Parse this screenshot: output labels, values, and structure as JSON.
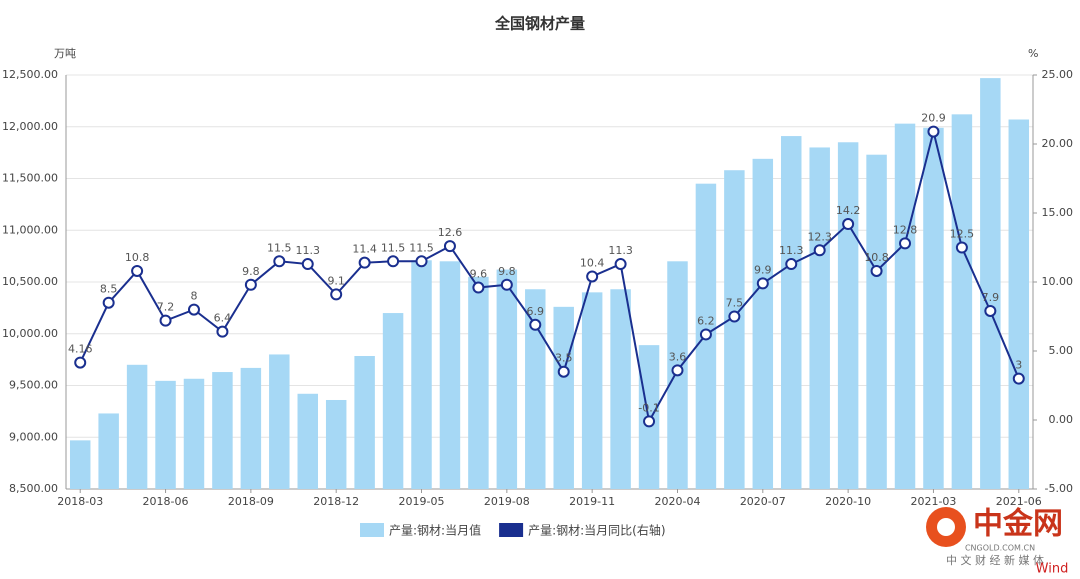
{
  "chart_data": {
    "type": "bar_line",
    "title": "全国钢材产量",
    "y_unit": "万吨",
    "y2_unit": "%",
    "categories": [
      "2018-03",
      null,
      null,
      "2018-06",
      null,
      null,
      "2018-09",
      null,
      null,
      "2018-12",
      null,
      null,
      "2019-05",
      null,
      null,
      "2019-08",
      null,
      null,
      "2019-11",
      null,
      null,
      "2020-04",
      null,
      null,
      "2020-07",
      null,
      null,
      "2020-10",
      null,
      null,
      "2021-03",
      null,
      null,
      "2021-06"
    ],
    "ylim": [
      8500,
      12500
    ],
    "yticks": [
      {
        "value": 8500,
        "label": "8,500.00"
      },
      {
        "value": 9000,
        "label": "9,000.00"
      },
      {
        "value": 9500,
        "label": "9,500.00"
      },
      {
        "value": 10000,
        "label": "10,000.00"
      },
      {
        "value": 10500,
        "label": "10,500.00"
      },
      {
        "value": 11000,
        "label": "11,000.00"
      },
      {
        "value": 11500,
        "label": "11,500.00"
      },
      {
        "value": 12000,
        "label": "12,000.00"
      },
      {
        "value": 12500,
        "label": "12,500.00"
      }
    ],
    "y2lim": [
      -5,
      25
    ],
    "y2ticks": [
      {
        "value": -5,
        "label": "-5.00"
      },
      {
        "value": 0,
        "label": "0.00"
      },
      {
        "value": 5,
        "label": "5.00"
      },
      {
        "value": 10,
        "label": "10.00"
      },
      {
        "value": 15,
        "label": "15.00"
      },
      {
        "value": 20,
        "label": "20.00"
      },
      {
        "value": 25,
        "label": "25.00"
      }
    ],
    "grid": true,
    "series": [
      {
        "name": "产量:钢材:当月值",
        "type": "bar",
        "color": "#a6d8f5",
        "values": [
          8970,
          9230,
          9700,
          9545,
          9565,
          9630,
          9670,
          9800,
          9420,
          9360,
          9785,
          10200,
          10710,
          10700,
          10550,
          10620,
          10430,
          10260,
          10400,
          10430,
          9890,
          10700,
          11450,
          11580,
          11690,
          11910,
          11800,
          11850,
          11730,
          12030,
          11990,
          12120,
          12470,
          12070
        ]
      },
      {
        "name": "产量:钢材:当月同比(右轴)",
        "type": "line",
        "axis": "y2",
        "color": "#1a2f8f",
        "values": [
          4.16,
          8.5,
          10.8,
          7.2,
          8,
          6.4,
          9.8,
          11.5,
          11.3,
          9.1,
          11.4,
          11.5,
          11.5,
          12.6,
          9.6,
          9.8,
          6.9,
          3.5,
          10.4,
          11.3,
          -0.1,
          3.6,
          6.2,
          7.5,
          9.9,
          11.3,
          12.3,
          14.2,
          10.8,
          12.8,
          20.9,
          12.5,
          7.9,
          3
        ]
      }
    ],
    "legend": "bottom"
  },
  "watermark": {
    "brand": "中金网",
    "site": "CNGOLD.COM.CN",
    "slogan": "中 文 财 经 新 媒 体",
    "source": "Wind"
  }
}
